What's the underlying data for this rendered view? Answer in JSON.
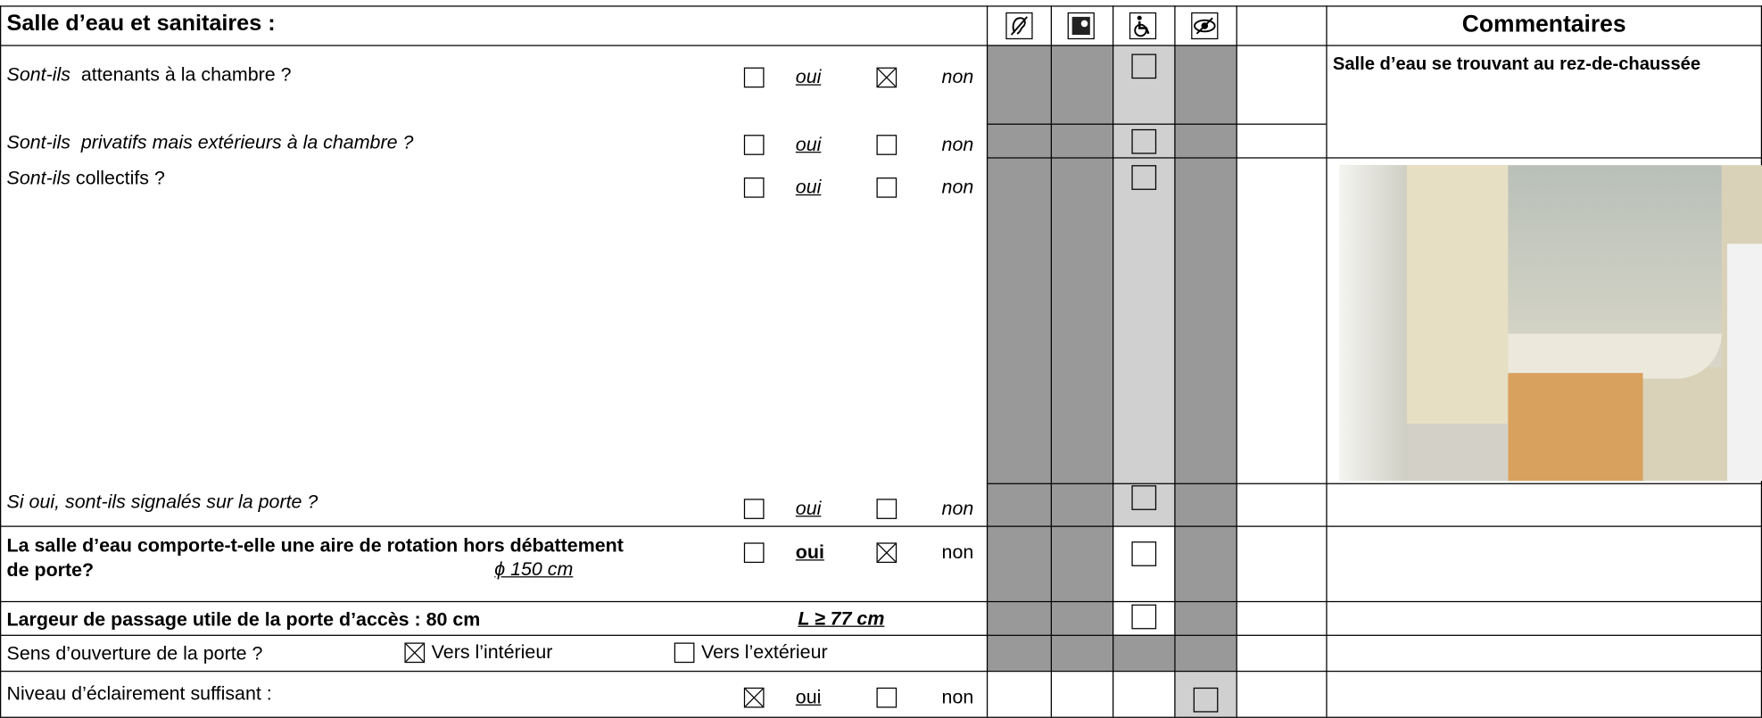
{
  "header": {
    "title": "Salle d’eau et sanitaires :",
    "comments_title": "Commentaires"
  },
  "rows": [
    {
      "question": [
        {
          "text": "Sont-ils",
          "style": "italic"
        },
        {
          "text": "  attenants à la chambre ?",
          "style": "normal"
        }
      ],
      "options": [
        {
          "label": "oui",
          "style": "italic underline",
          "checked": false
        },
        {
          "label": "non",
          "style": "italic",
          "checked": true
        }
      ],
      "comment": "Salle d’eau se trouvant au rez-de-chaussée"
    },
    {
      "question": [
        {
          "text": "Sont-ils  privatifs mais extérieurs à la chambre ?",
          "style": "italic"
        }
      ],
      "options": [
        {
          "label": "oui",
          "style": "italic underline",
          "checked": false
        },
        {
          "label": "non",
          "style": "italic",
          "checked": false
        }
      ]
    },
    {
      "question": [
        {
          "text": "Sont-ils",
          "style": "italic"
        },
        {
          "text": " collectifs ?",
          "style": "normal"
        }
      ],
      "options": [
        {
          "label": "oui",
          "style": "italic underline",
          "checked": false
        },
        {
          "label": "non",
          "style": "italic",
          "checked": false
        }
      ]
    },
    {
      "question": [
        {
          "text": "Si oui, sont-ils signalés sur la porte ?",
          "style": "italic"
        }
      ],
      "options": [
        {
          "label": "oui",
          "style": "italic underline",
          "checked": false
        },
        {
          "label": "non",
          "style": "italic",
          "checked": false
        }
      ]
    },
    {
      "question": [
        {
          "text": "La salle d’eau comporte-t-elle une aire de rotation hors débattement de porte?",
          "style": "bold"
        }
      ],
      "note": "ϕ 150 cm",
      "options": [
        {
          "label": "oui",
          "style": "bold underline",
          "checked": false
        },
        {
          "label": "non",
          "style": "normal",
          "checked": true
        }
      ]
    },
    {
      "question": [
        {
          "text": "Largeur de passage utile de la porte d’accès : 80 cm",
          "style": "bold"
        }
      ],
      "note": "L  ≥ 77 cm",
      "options": []
    },
    {
      "question": [
        {
          "text": "Sens d’ouverture de la porte ?",
          "style": "normal"
        }
      ],
      "options": [
        {
          "label": "Vers l’intérieur",
          "style": "normal",
          "checked": true
        },
        {
          "label": "Vers l’extérieur",
          "style": "normal",
          "checked": false
        }
      ]
    },
    {
      "question": [
        {
          "text": "Niveau d’éclairement suffisant :",
          "style": "normal"
        }
      ],
      "options": [
        {
          "label": "oui",
          "style": "underline",
          "checked": true
        },
        {
          "label": "non",
          "style": "normal",
          "checked": false
        }
      ]
    }
  ]
}
